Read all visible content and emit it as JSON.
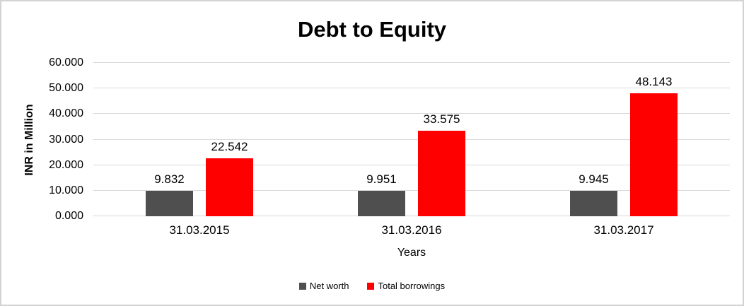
{
  "window": {
    "background": "#ffffff",
    "frame_border_color": "#d3d3d3"
  },
  "chart_data": {
    "type": "bar",
    "title": "Debt to Equity",
    "categories": [
      "31.03.2015",
      "31.03.2016",
      "31.03.2017"
    ],
    "series": [
      {
        "name": "Net worth",
        "color": "#4f4f4f",
        "values": [
          9.832,
          9.951,
          9.945
        ]
      },
      {
        "name": "Total borrowings",
        "color": "#ff0000",
        "values": [
          22.542,
          33.575,
          48.143
        ]
      }
    ],
    "xlabel": "Years",
    "ylabel": "INR in Million",
    "ylim": [
      0,
      60
    ],
    "ytick_step": 10,
    "ytick_labels": [
      "0.000",
      "10.000",
      "20.000",
      "30.000",
      "40.000",
      "50.000",
      "60.000"
    ],
    "value_labels": [
      [
        "9.832",
        "9.951",
        "9.945"
      ],
      [
        "22.542",
        "33.575",
        "48.143"
      ]
    ],
    "grid": true,
    "gridline_color": "#d9d9d9",
    "legend_position": "bottom",
    "legend_entries": [
      "Net worth",
      "Total borrowings"
    ],
    "text_color": "#000000"
  }
}
